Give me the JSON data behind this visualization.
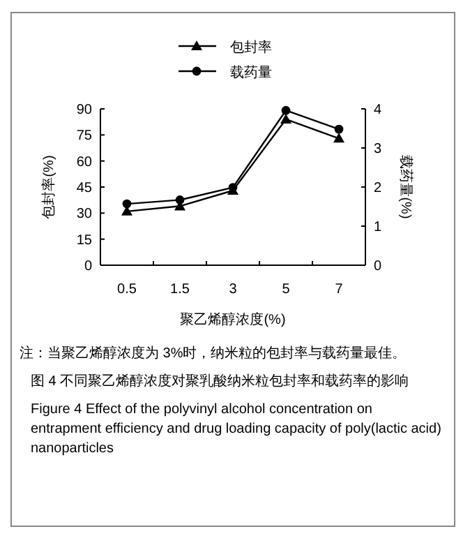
{
  "chart_data": {
    "type": "line",
    "categories": [
      "0.5",
      "1.5",
      "3",
      "5",
      "7"
    ],
    "xlabel": "聚乙烯醇浓度(%)",
    "ylabel": "包封率(%)",
    "y2label": "载药量(%)",
    "ylim": [
      0,
      90
    ],
    "yticks": [
      0,
      15,
      30,
      45,
      60,
      75,
      90
    ],
    "y2lim": [
      0,
      4
    ],
    "y2ticks": [
      0,
      1,
      2,
      3,
      4
    ],
    "series": [
      {
        "name": "包封率",
        "color": "#000000",
        "marker": "triangle",
        "values": [
          31,
          34,
          43,
          84,
          73
        ]
      },
      {
        "name": "载药量",
        "color": "#000000",
        "marker": "circle",
        "axis": "y2",
        "values": [
          1.57,
          1.67,
          1.99,
          3.96,
          3.48
        ]
      }
    ],
    "legend": "top",
    "grid": false,
    "annotations": [
      "注：当聚乙烯醇浓度为 3%时，纳米粒的包封率与载药量最佳。",
      "图 4  不同聚乙烯醇浓度对聚乳酸纳米粒包封率和载药率的影响",
      "Figure 4  Effect of the polyvinyl alcohol concentration on entrapment efficiency and drug loading capacity of poly(lactic acid) nanoparticles"
    ]
  }
}
